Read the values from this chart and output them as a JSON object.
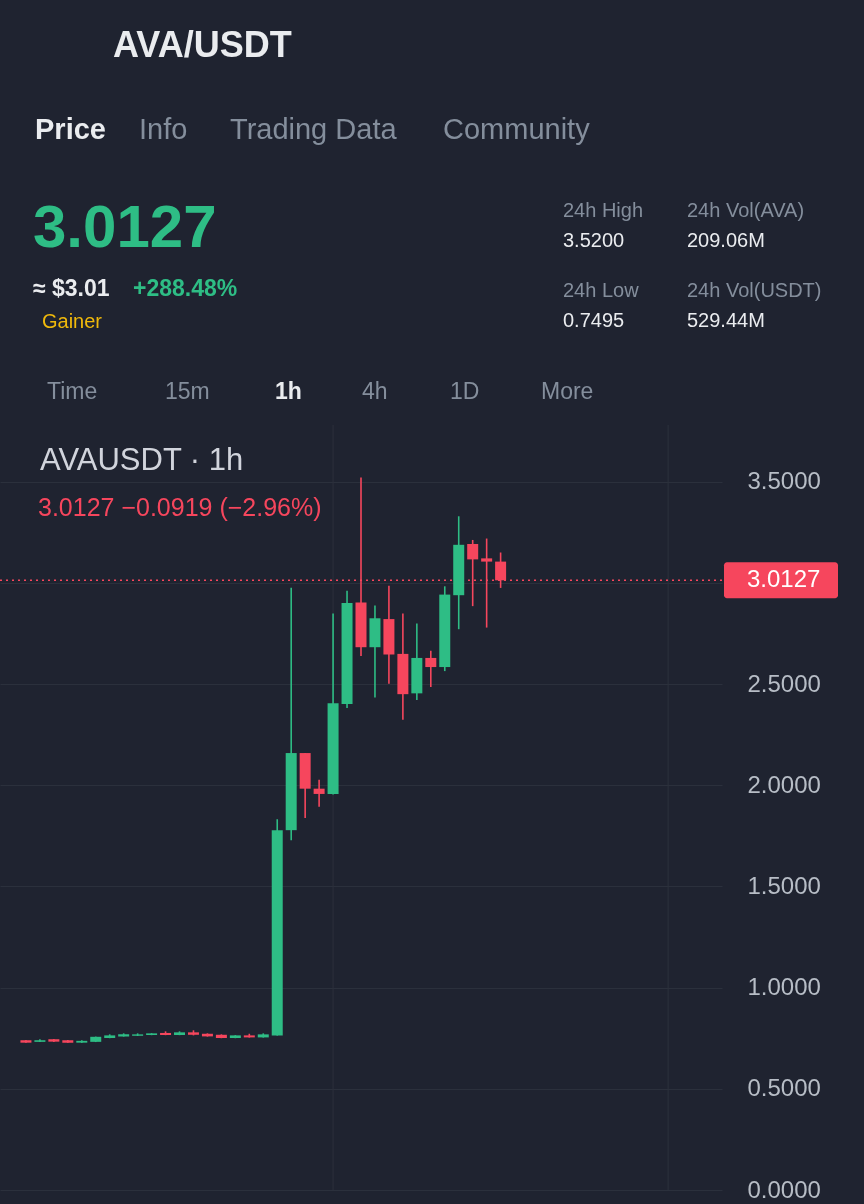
{
  "chart_data": {
    "type": "candlestick",
    "title": "AVA/USDT",
    "subtitle": "AVAUSDT · 1h",
    "annotations": [
      "Price",
      "Info",
      "Trading Data",
      "Community",
      "3.0127",
      "≈ $3.01",
      "+288.48%",
      "Gainer",
      "24h High",
      "3.5200",
      "24h Vol(AVA)",
      "209.06M",
      "24h Low",
      "0.7495",
      "24h Vol(USDT)",
      "529.44M",
      "Time",
      "15m",
      "1h",
      "4h",
      "1D",
      "More",
      "3.0127  −0.0919 (−2.96%)"
    ],
    "categories": [
      null,
      null,
      null,
      null,
      null,
      null,
      null,
      null,
      null,
      null,
      null,
      null,
      null,
      null,
      null,
      null,
      null,
      null,
      null,
      null,
      null,
      null,
      null,
      null,
      null,
      null,
      null,
      null,
      null,
      null,
      null,
      null,
      null,
      null,
      null,
      null,
      null,
      null,
      null,
      null,
      null,
      null,
      null,
      null,
      null,
      null,
      null,
      null,
      null,
      null,
      null
    ],
    "ohlc": [
      null,
      [
        0.74,
        0.741,
        0.727,
        0.728
      ],
      [
        0.732,
        0.745,
        0.731,
        0.74
      ],
      [
        0.745,
        0.746,
        0.731,
        0.733
      ],
      [
        0.74,
        0.741,
        0.727,
        0.728
      ],
      [
        0.728,
        0.74,
        0.727,
        0.737
      ],
      [
        0.732,
        0.758,
        0.731,
        0.757
      ],
      [
        0.751,
        0.769,
        0.75,
        0.764
      ],
      [
        0.759,
        0.774,
        0.758,
        0.769
      ],
      [
        0.762,
        0.774,
        0.761,
        0.769
      ],
      [
        0.766,
        0.775,
        0.765,
        0.774
      ],
      [
        0.776,
        0.784,
        0.765,
        0.766
      ],
      [
        0.766,
        0.784,
        0.765,
        0.779
      ],
      [
        0.779,
        0.789,
        0.764,
        0.767
      ],
      [
        0.772,
        0.774,
        0.758,
        0.759
      ],
      [
        0.767,
        0.769,
        0.75,
        0.751
      ],
      [
        0.751,
        0.765,
        0.75,
        0.764
      ],
      [
        0.764,
        0.772,
        0.753,
        0.754
      ],
      [
        0.754,
        0.774,
        0.753,
        0.769
      ],
      [
        0.764,
        1.832,
        0.763,
        1.778
      ],
      [
        1.778,
        2.976,
        1.728,
        2.159
      ],
      [
        2.159,
        2.159,
        1.838,
        1.983
      ],
      [
        1.983,
        2.027,
        1.894,
        1.957
      ],
      [
        1.957,
        2.849,
        1.954,
        2.405
      ],
      [
        2.402,
        2.961,
        2.382,
        2.901
      ],
      [
        2.903,
        3.52,
        2.638,
        2.682
      ],
      [
        2.682,
        2.888,
        2.434,
        2.825
      ],
      [
        2.821,
        2.986,
        2.502,
        2.646
      ],
      [
        2.649,
        2.849,
        2.323,
        2.45
      ],
      [
        2.454,
        2.799,
        2.421,
        2.629
      ],
      [
        2.629,
        2.665,
        2.486,
        2.584
      ],
      [
        2.584,
        2.983,
        2.564,
        2.942
      ],
      [
        2.939,
        3.329,
        2.771,
        3.188
      ],
      [
        3.192,
        3.212,
        2.885,
        3.116
      ],
      [
        3.121,
        3.219,
        2.779,
        3.105
      ],
      [
        3.105,
        3.15,
        2.975,
        3.0127
      ],
      null,
      null,
      null,
      null,
      null,
      null,
      null,
      null,
      null,
      null,
      null,
      null,
      null,
      null,
      null
    ],
    "colors": [
      null,
      "#f6465d",
      "#2ebd85",
      "#f6465d",
      "#f6465d",
      "#2ebd85",
      "#2ebd85",
      "#2ebd85",
      "#2ebd85",
      "#2ebd85",
      "#2ebd85",
      "#f6465d",
      "#2ebd85",
      "#f6465d",
      "#f6465d",
      "#f6465d",
      "#2ebd85",
      "#f6465d",
      "#2ebd85",
      "#2ebd85",
      "#2ebd85",
      "#f6465d",
      "#f6465d",
      "#2ebd85",
      "#2ebd85",
      "#f6465d",
      "#2ebd85",
      "#f6465d",
      "#f6465d",
      "#2ebd85",
      "#f6465d",
      "#2ebd85",
      "#2ebd85",
      "#f6465d",
      "#f6465d",
      "#f6465d",
      null,
      null,
      null,
      null,
      null,
      null,
      null,
      null,
      null,
      null,
      null,
      null,
      null,
      null,
      null
    ],
    "ylim": [
      0,
      3.78
    ],
    "yticks": [
      {
        "value": 0,
        "label": "0.0000"
      },
      {
        "value": 0.5,
        "label": "0.5000"
      },
      {
        "value": 1,
        "label": "1.0000"
      },
      {
        "value": 1.5,
        "label": "1.5000"
      },
      {
        "value": 2,
        "label": "2.0000"
      },
      {
        "value": 2.5,
        "label": "2.5000"
      },
      {
        "value": 3,
        "label": null
      },
      {
        "value": 3.5,
        "label": "3.5000"
      }
    ],
    "grid": "y",
    "tick_labels": "y",
    "ref_lines": [
      {
        "axis": "y",
        "value": 3.0127,
        "label": "3.0127",
        "color": "#f6465d",
        "line_style": "dotted"
      }
    ]
  }
}
